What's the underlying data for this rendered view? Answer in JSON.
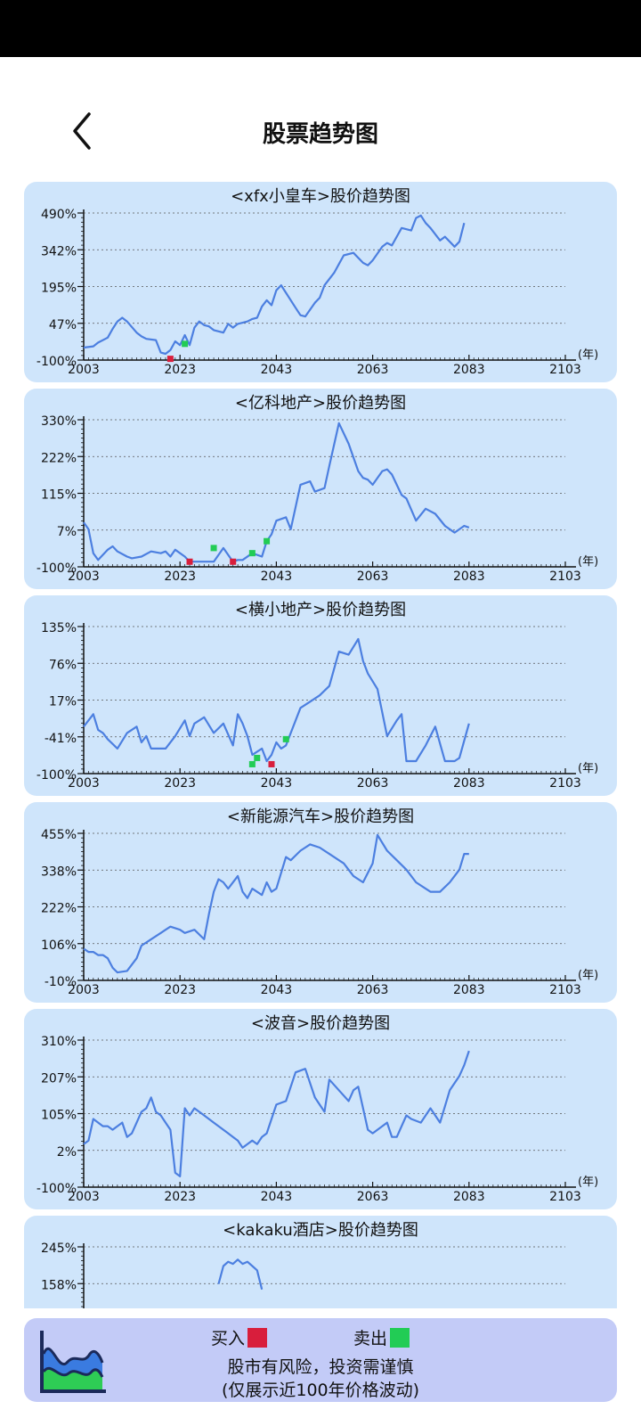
{
  "page": {
    "title": "股票趋势图"
  },
  "icons": {
    "back": "chevron-left-icon",
    "footer_logo": "area-chart-icon"
  },
  "colors": {
    "card_bg": "#cfe5fb",
    "line": "#4c7fe0",
    "buy": "#d81e3c",
    "sell": "#22cc55",
    "footer_bg": "#c3cbf7"
  },
  "legend": {
    "buy_label": "买入",
    "sell_label": "卖出"
  },
  "footer": {
    "line1": "股市有风险，投资需谨慎",
    "line2": "(仅展示近100年价格波动)"
  },
  "chart_data": [
    {
      "type": "line",
      "title": "<xfx小皇车>股价趋势图",
      "y_ticks": [
        "490%",
        "342%",
        "195%",
        "47%",
        "-100%"
      ],
      "ylim": [
        -100,
        490
      ],
      "x_ticks": [
        "2003",
        "2023",
        "2043",
        "2063",
        "2083",
        "2103"
      ],
      "xlim": [
        2003,
        2103
      ],
      "x_unit": "(年)",
      "x": [
        2003,
        2005,
        2006,
        2008,
        2009,
        2010,
        2011,
        2012,
        2014,
        2015,
        2016,
        2018,
        2019,
        2020,
        2021,
        2022,
        2023,
        2024,
        2025,
        2026,
        2027,
        2028,
        2029,
        2030,
        2032,
        2033,
        2034,
        2035,
        2037,
        2038,
        2039,
        2040,
        2041,
        2042,
        2043,
        2044,
        2045,
        2047,
        2048,
        2049,
        2051,
        2052,
        2053,
        2055,
        2057,
        2059,
        2061,
        2062,
        2063,
        2065,
        2066,
        2067,
        2069,
        2071,
        2072,
        2073,
        2074,
        2075,
        2077,
        2078,
        2080,
        2081,
        2082
      ],
      "y": [
        -50,
        -45,
        -30,
        -10,
        25,
        55,
        70,
        55,
        10,
        -5,
        -15,
        -20,
        -70,
        -75,
        -60,
        -25,
        -40,
        0,
        -40,
        30,
        55,
        40,
        35,
        20,
        10,
        45,
        30,
        45,
        55,
        65,
        70,
        115,
        140,
        120,
        180,
        200,
        170,
        110,
        80,
        75,
        130,
        150,
        200,
        250,
        320,
        330,
        290,
        280,
        300,
        355,
        370,
        360,
        430,
        420,
        470,
        480,
        450,
        430,
        380,
        395,
        355,
        375,
        450
      ],
      "buy_markers": [
        [
          2021,
          -95
        ]
      ],
      "sell_markers": [
        [
          2024,
          -35
        ]
      ]
    },
    {
      "type": "line",
      "title": "<亿科地产>股价趋势图",
      "y_ticks": [
        "330%",
        "222%",
        "115%",
        "7%",
        "-100%"
      ],
      "ylim": [
        -100,
        330
      ],
      "x_ticks": [
        "2003",
        "2023",
        "2043",
        "2063",
        "2083",
        "2103"
      ],
      "xlim": [
        2003,
        2103
      ],
      "x_unit": "(年)",
      "x": [
        2003,
        2004,
        2005,
        2006,
        2008,
        2009,
        2010,
        2012,
        2013,
        2015,
        2017,
        2019,
        2020,
        2021,
        2022,
        2024,
        2025,
        2026,
        2028,
        2030,
        2032,
        2034,
        2035,
        2036,
        2038,
        2040,
        2041,
        2042,
        2043,
        2045,
        2046,
        2048,
        2050,
        2051,
        2053,
        2054,
        2056,
        2058,
        2060,
        2061,
        2062,
        2063,
        2065,
        2066,
        2067,
        2069,
        2070,
        2072,
        2074,
        2076,
        2078,
        2080,
        2082,
        2083
      ],
      "y": [
        30,
        10,
        -60,
        -80,
        -50,
        -40,
        -55,
        -70,
        -75,
        -70,
        -55,
        -60,
        -55,
        -70,
        -50,
        -70,
        -85,
        -85,
        -85,
        -85,
        -45,
        -85,
        -80,
        -80,
        -60,
        -70,
        -25,
        -5,
        35,
        45,
        10,
        140,
        150,
        120,
        130,
        195,
        320,
        260,
        180,
        160,
        155,
        140,
        180,
        185,
        170,
        110,
        100,
        35,
        70,
        55,
        20,
        0,
        20,
        15
      ],
      "buy_markers": [
        [
          2025,
          -85
        ],
        [
          2034,
          -85
        ]
      ],
      "sell_markers": [
        [
          2030,
          -45
        ],
        [
          2038,
          -60
        ],
        [
          2041,
          -25
        ]
      ]
    },
    {
      "type": "line",
      "title": "<横小地产>股价趋势图",
      "y_ticks": [
        "135%",
        "76%",
        "17%",
        "-41%",
        "-100%"
      ],
      "ylim": [
        -100,
        135
      ],
      "x_ticks": [
        "2003",
        "2023",
        "2043",
        "2063",
        "2083",
        "2103"
      ],
      "xlim": [
        2003,
        2103
      ],
      "x_unit": "(年)",
      "x": [
        2003,
        2005,
        2006,
        2007,
        2008,
        2010,
        2012,
        2014,
        2015,
        2016,
        2017,
        2018,
        2020,
        2022,
        2024,
        2025,
        2026,
        2028,
        2030,
        2032,
        2034,
        2035,
        2036,
        2037,
        2038,
        2040,
        2041,
        2042,
        2043,
        2044,
        2045,
        2046,
        2048,
        2050,
        2052,
        2054,
        2056,
        2058,
        2060,
        2061,
        2062,
        2064,
        2066,
        2068,
        2069,
        2070,
        2072,
        2074,
        2076,
        2078,
        2080,
        2081,
        2083
      ],
      "y": [
        -25,
        -5,
        -30,
        -35,
        -45,
        -60,
        -35,
        -25,
        -50,
        -40,
        -60,
        -60,
        -60,
        -40,
        -15,
        -40,
        -20,
        -10,
        -35,
        -20,
        -55,
        -5,
        -20,
        -40,
        -70,
        -60,
        -80,
        -70,
        -50,
        -60,
        -55,
        -35,
        5,
        15,
        25,
        40,
        95,
        90,
        115,
        80,
        60,
        35,
        -40,
        -15,
        -5,
        -80,
        -80,
        -55,
        -25,
        -80,
        -80,
        -75,
        -20
      ],
      "buy_markers": [
        [
          2042,
          -85
        ]
      ],
      "sell_markers": [
        [
          2038,
          -85
        ],
        [
          2039,
          -75
        ],
        [
          2045,
          -45
        ]
      ]
    },
    {
      "type": "line",
      "title": "<新能源汽车>股价趋势图",
      "y_ticks": [
        "455%",
        "338%",
        "222%",
        "106%",
        "-10%"
      ],
      "ylim": [
        -10,
        455
      ],
      "x_ticks": [
        "2003",
        "2023",
        "2043",
        "2063",
        "2083",
        "2103"
      ],
      "xlim": [
        2003,
        2103
      ],
      "x_unit": "(年)",
      "x": [
        2003,
        2004,
        2005,
        2006,
        2007,
        2008,
        2009,
        2010,
        2012,
        2013,
        2014,
        2015,
        2017,
        2019,
        2020,
        2021,
        2023,
        2024,
        2026,
        2028,
        2029,
        2030,
        2031,
        2032,
        2033,
        2035,
        2036,
        2037,
        2038,
        2040,
        2041,
        2042,
        2043,
        2045,
        2046,
        2048,
        2050,
        2052,
        2054,
        2056,
        2057,
        2059,
        2061,
        2063,
        2064,
        2066,
        2068,
        2070,
        2072,
        2074,
        2075,
        2077,
        2079,
        2081,
        2082,
        2083
      ],
      "y": [
        90,
        80,
        80,
        70,
        70,
        60,
        30,
        15,
        20,
        40,
        60,
        100,
        120,
        140,
        150,
        160,
        150,
        140,
        150,
        120,
        200,
        270,
        310,
        300,
        280,
        320,
        270,
        250,
        280,
        260,
        300,
        270,
        280,
        380,
        370,
        400,
        420,
        410,
        390,
        370,
        360,
        320,
        300,
        360,
        450,
        400,
        370,
        340,
        300,
        280,
        270,
        270,
        300,
        340,
        390,
        390
      ],
      "buy_markers": [],
      "sell_markers": []
    },
    {
      "type": "line",
      "title": "<波音>股价趋势图",
      "y_ticks": [
        "310%",
        "207%",
        "105%",
        "2%",
        "-100%"
      ],
      "ylim": [
        -100,
        310
      ],
      "x_ticks": [
        "2003",
        "2023",
        "2043",
        "2063",
        "2083",
        "2103"
      ],
      "xlim": [
        2003,
        2103
      ],
      "x_unit": "(年)",
      "x": [
        2003,
        2004,
        2005,
        2007,
        2008,
        2009,
        2010,
        2011,
        2012,
        2013,
        2014,
        2015,
        2016,
        2017,
        2018,
        2019,
        2020,
        2021,
        2022,
        2023,
        2024,
        2025,
        2026,
        2028,
        2030,
        2032,
        2033,
        2034,
        2035,
        2036,
        2037,
        2038,
        2039,
        2040,
        2041,
        2043,
        2045,
        2047,
        2049,
        2050,
        2051,
        2053,
        2054,
        2056,
        2058,
        2059,
        2060,
        2062,
        2063,
        2065,
        2066,
        2067,
        2068,
        2070,
        2071,
        2073,
        2075,
        2077,
        2079,
        2081,
        2082,
        2083
      ],
      "y": [
        20,
        30,
        90,
        70,
        70,
        60,
        70,
        80,
        40,
        50,
        80,
        110,
        120,
        150,
        110,
        100,
        80,
        60,
        -60,
        -70,
        120,
        100,
        120,
        100,
        80,
        60,
        50,
        40,
        30,
        10,
        20,
        30,
        20,
        40,
        50,
        130,
        140,
        220,
        230,
        190,
        150,
        110,
        200,
        170,
        140,
        170,
        180,
        60,
        50,
        70,
        80,
        40,
        40,
        100,
        90,
        80,
        120,
        80,
        170,
        210,
        240,
        280
      ],
      "buy_markers": [],
      "sell_markers": []
    },
    {
      "type": "line",
      "title": "<kakaku酒店>股价趋势图",
      "y_ticks": [
        "245%",
        "158%"
      ],
      "ylim": [
        -100,
        245
      ],
      "x_ticks": [],
      "xlim": [
        2003,
        2103
      ],
      "x_unit": "",
      "x": [
        2031,
        2032,
        2033,
        2034,
        2035,
        2036,
        2037,
        2038,
        2039,
        2040
      ],
      "y": [
        158,
        200,
        210,
        205,
        215,
        205,
        210,
        200,
        190,
        145
      ],
      "buy_markers": [],
      "sell_markers": []
    }
  ]
}
